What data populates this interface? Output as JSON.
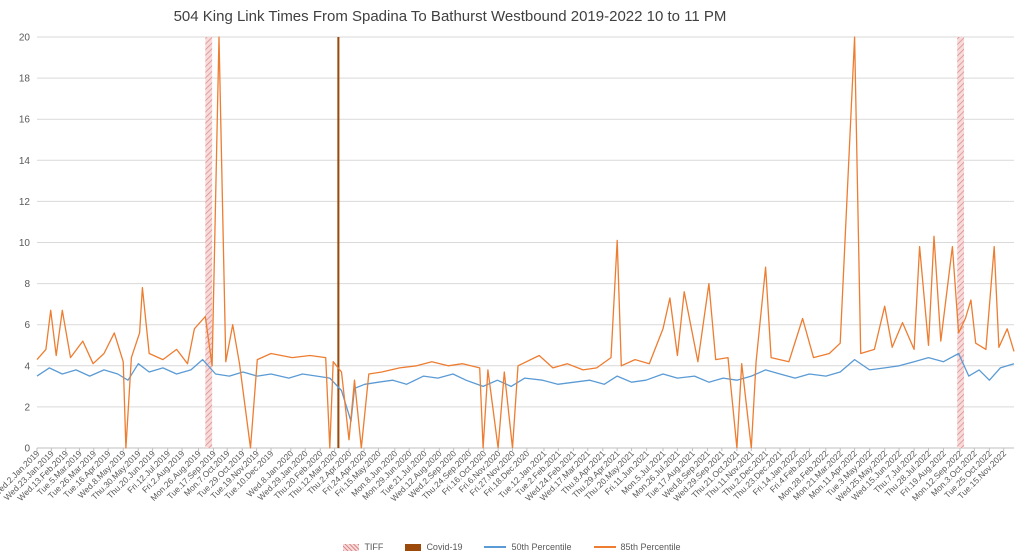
{
  "chart_data": {
    "type": "line",
    "title": "504 King Link Times From Spadina To Bathurst Westbound 2019-2022 10 to 11 PM",
    "xlabel": "",
    "ylabel": "",
    "ylim": [
      0,
      20
    ],
    "y_ticks": [
      "0",
      "2",
      "4",
      "6",
      "8",
      "10",
      "12",
      "14",
      "16",
      "18",
      "20"
    ],
    "grid": "horizontal",
    "legend_position": "bottom",
    "x_range": [
      "2019-01-02",
      "2022-11-30"
    ],
    "x_tick_labels": [
      {
        "date": "2019-01-02",
        "label": "Wed.2.Jan.2019"
      },
      {
        "date": "2019-01-23",
        "label": "Wed.23.Jan.2019"
      },
      {
        "date": "2019-02-13",
        "label": "Wed.13.Feb.2019"
      },
      {
        "date": "2019-03-05",
        "label": "Tue.5.Mar.2019"
      },
      {
        "date": "2019-03-26",
        "label": "Tue.26.Mar.2019"
      },
      {
        "date": "2019-04-16",
        "label": "Tue.16.Apr.2019"
      },
      {
        "date": "2019-05-08",
        "label": "Wed.8.May.2019"
      },
      {
        "date": "2019-05-30",
        "label": "Thu.30.May.2019"
      },
      {
        "date": "2019-06-20",
        "label": "Thu.20.Jun.2019"
      },
      {
        "date": "2019-07-12",
        "label": "Fri.12.Jul.2019"
      },
      {
        "date": "2019-08-02",
        "label": "Fri.2.Aug.2019"
      },
      {
        "date": "2019-08-26",
        "label": "Mon.26.Aug.2019"
      },
      {
        "date": "2019-09-17",
        "label": "Tue.17.Sep.2019"
      },
      {
        "date": "2019-10-07",
        "label": "Mon.7.Oct.2019"
      },
      {
        "date": "2019-10-29",
        "label": "Tue.29.Oct.2019"
      },
      {
        "date": "2019-11-19",
        "label": "Tue.19.Nov.2019"
      },
      {
        "date": "2019-12-10",
        "label": "Tue.10.Dec.2019"
      },
      {
        "date": "2020-01-08",
        "label": "Wed.8.Jan.2020"
      },
      {
        "date": "2020-01-29",
        "label": "Wed.29.Jan.2020"
      },
      {
        "date": "2020-02-20",
        "label": "Thu.20.Feb.2020"
      },
      {
        "date": "2020-03-12",
        "label": "Thu.12.Mar.2020"
      },
      {
        "date": "2020-04-02",
        "label": "Thu.2.Apr.2020"
      },
      {
        "date": "2020-04-24",
        "label": "Fri.24.Apr.2020"
      },
      {
        "date": "2020-05-15",
        "label": "Fri.15.May.2020"
      },
      {
        "date": "2020-06-08",
        "label": "Mon.8.Jun.2020"
      },
      {
        "date": "2020-06-29",
        "label": "Mon.29.Jun.2020"
      },
      {
        "date": "2020-07-21",
        "label": "Tue.21.Jul.2020"
      },
      {
        "date": "2020-08-12",
        "label": "Wed.12.Aug.2020"
      },
      {
        "date": "2020-09-02",
        "label": "Wed.2.Sep.2020"
      },
      {
        "date": "2020-09-24",
        "label": "Thu.24.Sep.2020"
      },
      {
        "date": "2020-10-16",
        "label": "Fri.16.Oct.2020"
      },
      {
        "date": "2020-11-06",
        "label": "Fri.6.Nov.2020"
      },
      {
        "date": "2020-11-27",
        "label": "Fri.27.Nov.2020"
      },
      {
        "date": "2020-12-18",
        "label": "Fri.18.Dec.2020"
      },
      {
        "date": "2021-01-12",
        "label": "Tue.12.Jan.2021"
      },
      {
        "date": "2021-02-02",
        "label": "Tue.2.Feb.2021"
      },
      {
        "date": "2021-02-24",
        "label": "Wed.24.Feb.2021"
      },
      {
        "date": "2021-03-17",
        "label": "Wed.17.Mar.2021"
      },
      {
        "date": "2021-04-08",
        "label": "Thu.8.Apr.2021"
      },
      {
        "date": "2021-04-29",
        "label": "Thu.29.Apr.2021"
      },
      {
        "date": "2021-05-20",
        "label": "Thu.20.May.2021"
      },
      {
        "date": "2021-06-11",
        "label": "Fri.11.Jun.2021"
      },
      {
        "date": "2021-07-05",
        "label": "Mon.5.Jul.2021"
      },
      {
        "date": "2021-07-26",
        "label": "Mon.26.Jul.2021"
      },
      {
        "date": "2021-08-17",
        "label": "Tue.17.Aug.2021"
      },
      {
        "date": "2021-09-08",
        "label": "Wed.8.Sep.2021"
      },
      {
        "date": "2021-09-29",
        "label": "Wed.29.Sep.2021"
      },
      {
        "date": "2021-10-21",
        "label": "Thu.21.Oct.2021"
      },
      {
        "date": "2021-11-11",
        "label": "Thu.11.Nov.2021"
      },
      {
        "date": "2021-12-02",
        "label": "Thu.2.Dec.2021"
      },
      {
        "date": "2021-12-23",
        "label": "Thu.23.Dec.2021"
      },
      {
        "date": "2022-01-14",
        "label": "Fri.14.Jan.2022"
      },
      {
        "date": "2022-02-04",
        "label": "Fri.4.Feb.2022"
      },
      {
        "date": "2022-02-28",
        "label": "Mon.28.Feb.2022"
      },
      {
        "date": "2022-03-21",
        "label": "Mon.21.Mar.2022"
      },
      {
        "date": "2022-04-11",
        "label": "Mon.11.Apr.2022"
      },
      {
        "date": "2022-05-03",
        "label": "Tue.3.May.2022"
      },
      {
        "date": "2022-05-25",
        "label": "Wed.25.May.2022"
      },
      {
        "date": "2022-06-15",
        "label": "Wed.15.Jun.2022"
      },
      {
        "date": "2022-07-07",
        "label": "Thu.7.Jul.2022"
      },
      {
        "date": "2022-07-28",
        "label": "Thu.28.Jul.2022"
      },
      {
        "date": "2022-08-19",
        "label": "Fri.19.Aug.2022"
      },
      {
        "date": "2022-09-12",
        "label": "Mon.12.Sep.2022"
      },
      {
        "date": "2022-10-03",
        "label": "Mon.3.Oct.2022"
      },
      {
        "date": "2022-10-25",
        "label": "Tue.25.Oct.2022"
      },
      {
        "date": "2022-11-15",
        "label": "Tue.15.Nov.2022"
      }
    ],
    "bands": [
      {
        "name": "TIFF",
        "color": "#e6a8a8",
        "value": 20,
        "ranges": [
          [
            "2019-09-05",
            "2019-09-15"
          ],
          [
            "2022-09-08",
            "2022-09-18"
          ]
        ]
      },
      {
        "name": "Covid-19",
        "color": "#9c4a0c",
        "value": 20,
        "ranges": [
          [
            "2020-03-16",
            "2020-03-19"
          ]
        ]
      }
    ],
    "series": [
      {
        "name": "50th Percentile",
        "color": "#5b9bd5",
        "points": [
          [
            "2019-01-02",
            3.5
          ],
          [
            "2019-01-20",
            3.9
          ],
          [
            "2019-02-08",
            3.6
          ],
          [
            "2019-02-28",
            3.8
          ],
          [
            "2019-03-20",
            3.5
          ],
          [
            "2019-04-10",
            3.8
          ],
          [
            "2019-04-30",
            3.6
          ],
          [
            "2019-05-15",
            3.3
          ],
          [
            "2019-05-30",
            4.1
          ],
          [
            "2019-06-15",
            3.7
          ],
          [
            "2019-07-05",
            3.9
          ],
          [
            "2019-07-25",
            3.6
          ],
          [
            "2019-08-15",
            3.8
          ],
          [
            "2019-09-01",
            4.3
          ],
          [
            "2019-09-20",
            3.6
          ],
          [
            "2019-10-10",
            3.5
          ],
          [
            "2019-10-30",
            3.7
          ],
          [
            "2019-11-20",
            3.5
          ],
          [
            "2019-12-10",
            3.6
          ],
          [
            "2020-01-05",
            3.4
          ],
          [
            "2020-01-25",
            3.6
          ],
          [
            "2020-02-15",
            3.5
          ],
          [
            "2020-03-05",
            3.4
          ],
          [
            "2020-03-22",
            2.8
          ],
          [
            "2020-04-05",
            1.3
          ],
          [
            "2020-04-10",
            2.9
          ],
          [
            "2020-04-25",
            3.1
          ],
          [
            "2020-05-15",
            3.2
          ],
          [
            "2020-06-05",
            3.3
          ],
          [
            "2020-06-25",
            3.1
          ],
          [
            "2020-07-20",
            3.5
          ],
          [
            "2020-08-10",
            3.4
          ],
          [
            "2020-09-01",
            3.6
          ],
          [
            "2020-09-20",
            3.3
          ],
          [
            "2020-10-15",
            3.0
          ],
          [
            "2020-11-05",
            3.3
          ],
          [
            "2020-11-25",
            3.0
          ],
          [
            "2020-12-15",
            3.4
          ],
          [
            "2021-01-10",
            3.3
          ],
          [
            "2021-02-01",
            3.1
          ],
          [
            "2021-02-25",
            3.2
          ],
          [
            "2021-03-20",
            3.3
          ],
          [
            "2021-04-10",
            3.1
          ],
          [
            "2021-04-29",
            3.5
          ],
          [
            "2021-05-20",
            3.2
          ],
          [
            "2021-06-10",
            3.3
          ],
          [
            "2021-07-05",
            3.6
          ],
          [
            "2021-07-26",
            3.4
          ],
          [
            "2021-08-20",
            3.5
          ],
          [
            "2021-09-10",
            3.2
          ],
          [
            "2021-10-01",
            3.4
          ],
          [
            "2021-10-21",
            3.3
          ],
          [
            "2021-11-11",
            3.5
          ],
          [
            "2021-12-02",
            3.8
          ],
          [
            "2021-12-23",
            3.6
          ],
          [
            "2022-01-14",
            3.4
          ],
          [
            "2022-02-04",
            3.6
          ],
          [
            "2022-02-28",
            3.5
          ],
          [
            "2022-03-21",
            3.7
          ],
          [
            "2022-04-11",
            4.3
          ],
          [
            "2022-05-03",
            3.8
          ],
          [
            "2022-05-25",
            3.9
          ],
          [
            "2022-06-15",
            4.0
          ],
          [
            "2022-07-07",
            4.2
          ],
          [
            "2022-07-28",
            4.4
          ],
          [
            "2022-08-19",
            4.2
          ],
          [
            "2022-09-10",
            4.6
          ],
          [
            "2022-09-25",
            3.5
          ],
          [
            "2022-10-10",
            3.8
          ],
          [
            "2022-10-25",
            3.3
          ],
          [
            "2022-11-10",
            3.9
          ],
          [
            "2022-11-30",
            4.1
          ]
        ]
      },
      {
        "name": "85th Percentile",
        "color": "#ed7d31",
        "points": [
          [
            "2019-01-02",
            4.3
          ],
          [
            "2019-01-15",
            4.8
          ],
          [
            "2019-01-22",
            6.7
          ],
          [
            "2019-01-30",
            4.5
          ],
          [
            "2019-02-08",
            6.7
          ],
          [
            "2019-02-20",
            4.4
          ],
          [
            "2019-03-10",
            5.2
          ],
          [
            "2019-03-25",
            4.1
          ],
          [
            "2019-04-10",
            4.6
          ],
          [
            "2019-04-25",
            5.6
          ],
          [
            "2019-05-08",
            4.2
          ],
          [
            "2019-05-12",
            0.0
          ],
          [
            "2019-05-20",
            4.4
          ],
          [
            "2019-06-01",
            5.6
          ],
          [
            "2019-06-05",
            7.8
          ],
          [
            "2019-06-15",
            4.6
          ],
          [
            "2019-07-05",
            4.3
          ],
          [
            "2019-07-25",
            4.8
          ],
          [
            "2019-08-10",
            4.1
          ],
          [
            "2019-08-20",
            5.8
          ],
          [
            "2019-09-05",
            6.4
          ],
          [
            "2019-09-15",
            4.0
          ],
          [
            "2019-09-25",
            20.0
          ],
          [
            "2019-10-05",
            4.2
          ],
          [
            "2019-10-15",
            6.0
          ],
          [
            "2019-10-25",
            4.1
          ],
          [
            "2019-11-10",
            0.0
          ],
          [
            "2019-11-20",
            4.3
          ],
          [
            "2019-12-10",
            4.6
          ],
          [
            "2020-01-10",
            4.4
          ],
          [
            "2020-02-05",
            4.5
          ],
          [
            "2020-02-28",
            4.4
          ],
          [
            "2020-03-05",
            0.0
          ],
          [
            "2020-03-10",
            4.2
          ],
          [
            "2020-03-22",
            3.7
          ],
          [
            "2020-04-02",
            0.4
          ],
          [
            "2020-04-10",
            3.3
          ],
          [
            "2020-04-20",
            0.0
          ],
          [
            "2020-05-01",
            3.6
          ],
          [
            "2020-05-20",
            3.7
          ],
          [
            "2020-06-15",
            3.9
          ],
          [
            "2020-07-10",
            4.0
          ],
          [
            "2020-08-01",
            4.2
          ],
          [
            "2020-08-25",
            4.0
          ],
          [
            "2020-09-15",
            4.1
          ],
          [
            "2020-10-10",
            3.9
          ],
          [
            "2020-10-15",
            0.0
          ],
          [
            "2020-10-22",
            3.8
          ],
          [
            "2020-11-06",
            0.0
          ],
          [
            "2020-11-15",
            3.7
          ],
          [
            "2020-11-27",
            0.0
          ],
          [
            "2020-12-05",
            4.0
          ],
          [
            "2021-01-05",
            4.5
          ],
          [
            "2021-01-25",
            3.9
          ],
          [
            "2021-02-15",
            4.1
          ],
          [
            "2021-03-10",
            3.8
          ],
          [
            "2021-03-30",
            3.9
          ],
          [
            "2021-04-20",
            4.4
          ],
          [
            "2021-04-29",
            10.1
          ],
          [
            "2021-05-05",
            4.0
          ],
          [
            "2021-05-25",
            4.3
          ],
          [
            "2021-06-15",
            4.1
          ],
          [
            "2021-07-05",
            5.8
          ],
          [
            "2021-07-15",
            7.3
          ],
          [
            "2021-07-26",
            4.5
          ],
          [
            "2021-08-05",
            7.6
          ],
          [
            "2021-08-25",
            4.2
          ],
          [
            "2021-09-10",
            8.0
          ],
          [
            "2021-09-20",
            4.3
          ],
          [
            "2021-10-08",
            4.4
          ],
          [
            "2021-10-21",
            0.0
          ],
          [
            "2021-10-28",
            4.1
          ],
          [
            "2021-11-11",
            0.0
          ],
          [
            "2021-11-18",
            4.2
          ],
          [
            "2021-12-02",
            8.8
          ],
          [
            "2021-12-10",
            4.4
          ],
          [
            "2022-01-05",
            4.2
          ],
          [
            "2022-01-25",
            6.3
          ],
          [
            "2022-02-10",
            4.4
          ],
          [
            "2022-03-05",
            4.6
          ],
          [
            "2022-03-21",
            5.1
          ],
          [
            "2022-04-11",
            20.0
          ],
          [
            "2022-04-20",
            4.6
          ],
          [
            "2022-05-10",
            4.8
          ],
          [
            "2022-05-25",
            6.9
          ],
          [
            "2022-06-05",
            4.9
          ],
          [
            "2022-06-20",
            6.1
          ],
          [
            "2022-07-07",
            4.8
          ],
          [
            "2022-07-15",
            9.8
          ],
          [
            "2022-07-28",
            5.0
          ],
          [
            "2022-08-05",
            10.3
          ],
          [
            "2022-08-15",
            5.2
          ],
          [
            "2022-09-01",
            9.8
          ],
          [
            "2022-09-10",
            5.6
          ],
          [
            "2022-09-20",
            6.3
          ],
          [
            "2022-09-28",
            7.2
          ],
          [
            "2022-10-05",
            5.1
          ],
          [
            "2022-10-20",
            4.8
          ],
          [
            "2022-11-01",
            9.8
          ],
          [
            "2022-11-08",
            4.9
          ],
          [
            "2022-11-20",
            5.8
          ],
          [
            "2022-11-30",
            4.7
          ]
        ]
      }
    ]
  }
}
